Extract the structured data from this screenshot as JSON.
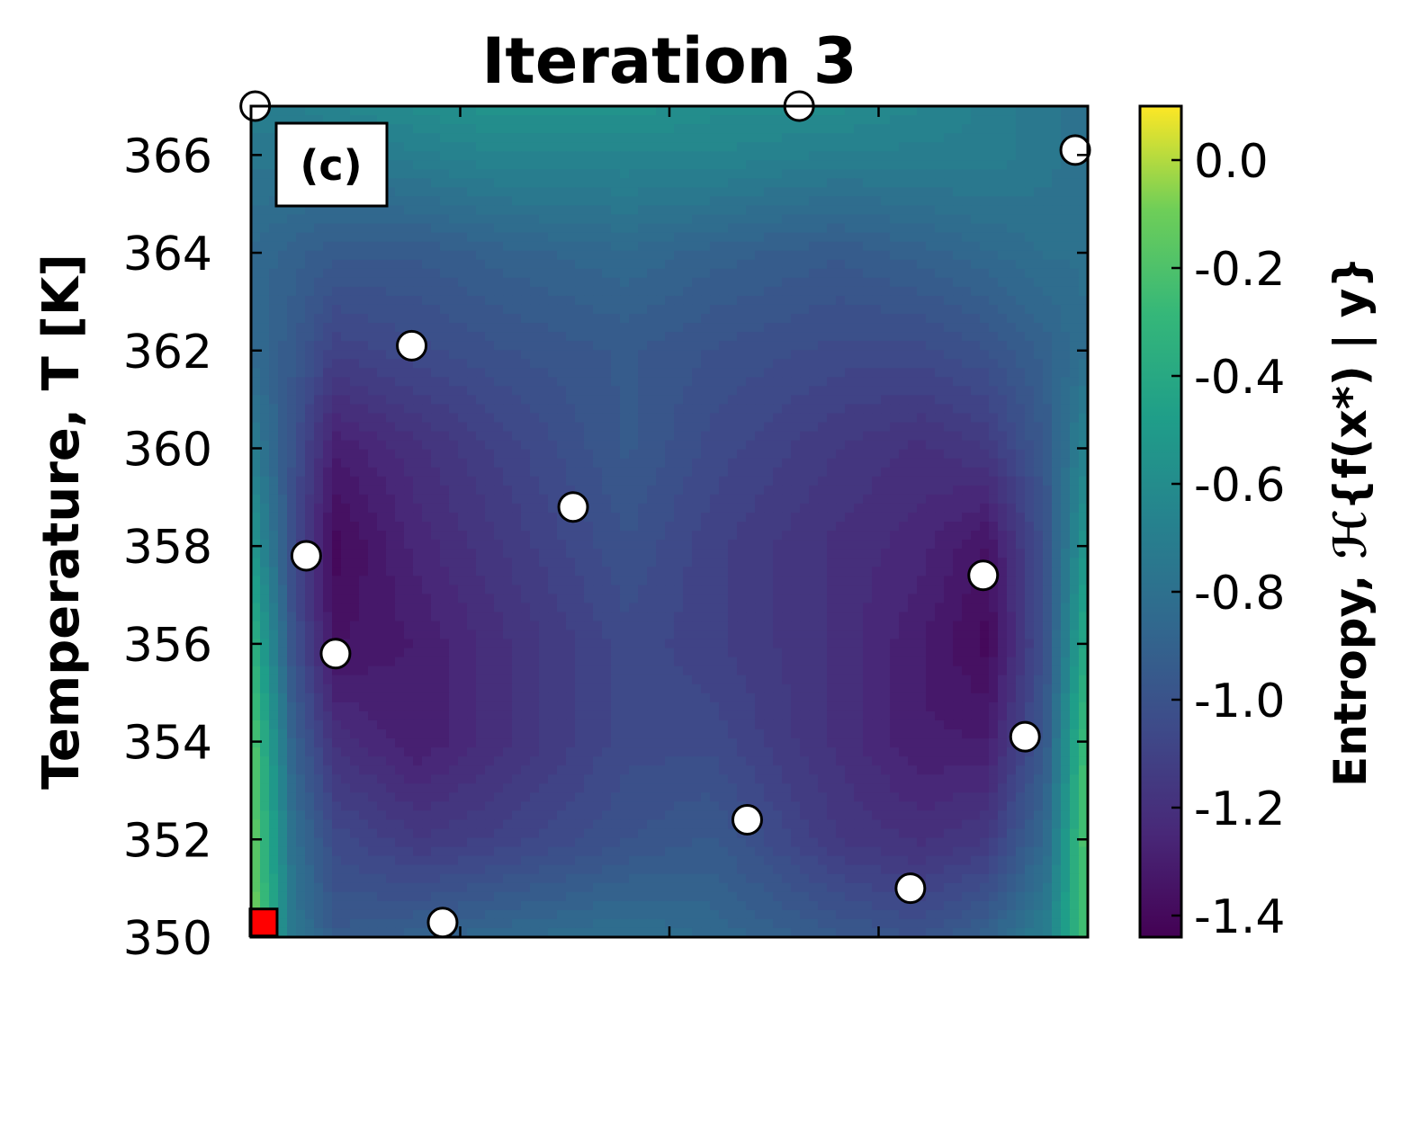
{
  "chart_data": {
    "type": "heatmap",
    "title": "Iteration 3",
    "panel_label": "(c)",
    "ylabel": "Temperature, T [K]",
    "xlabel": "",
    "ylim": [
      350,
      367
    ],
    "xlim": [
      0,
      1
    ],
    "y_ticks": [
      350,
      352,
      354,
      356,
      358,
      360,
      362,
      364,
      366
    ],
    "y_tick_labels": [
      "350",
      "352",
      "354",
      "356",
      "358",
      "360",
      "362",
      "364",
      "366"
    ],
    "x_ticks": [
      0.25,
      0.5,
      0.75
    ],
    "colorbar": {
      "label": "Entropy, ℋ{f(x*) | y}",
      "colormap": "viridis",
      "range": [
        -1.44,
        0.1
      ],
      "ticks": [
        0.0,
        -0.2,
        -0.4,
        -0.6,
        -0.8,
        -1.0,
        -1.2,
        -1.4
      ],
      "tick_labels": [
        "0.0",
        "-0.2",
        "-0.4",
        "-0.6",
        "-0.8",
        "-1.0",
        "-1.2",
        "-1.4"
      ]
    },
    "entropy_grid": {
      "x": [
        0.0,
        0.05,
        0.1,
        0.2,
        0.3,
        0.45,
        0.55,
        0.7,
        0.8,
        0.88,
        0.95,
        1.0
      ],
      "y": [
        350,
        352,
        354,
        356,
        358,
        360,
        362,
        364,
        366,
        367
      ],
      "z": [
        [
          -0.05,
          -0.75,
          -0.95,
          -0.9,
          -0.85,
          -0.8,
          -0.85,
          -0.95,
          -1.0,
          -0.9,
          -0.7,
          -0.2
        ],
        [
          -0.1,
          -0.8,
          -1.05,
          -1.15,
          -1.1,
          -1.0,
          -0.95,
          -1.15,
          -1.2,
          -1.15,
          -0.85,
          -0.15
        ],
        [
          -0.15,
          -0.9,
          -1.2,
          -1.3,
          -1.2,
          -1.05,
          -1.05,
          -1.2,
          -1.3,
          -1.3,
          -0.95,
          -0.2
        ],
        [
          -0.3,
          -1.0,
          -1.35,
          -1.3,
          -1.2,
          -1.05,
          -1.1,
          -1.2,
          -1.3,
          -1.4,
          -1.0,
          -0.35
        ],
        [
          -0.5,
          -1.05,
          -1.4,
          -1.25,
          -1.15,
          -1.0,
          -1.1,
          -1.2,
          -1.25,
          -1.35,
          -1.0,
          -0.5
        ],
        [
          -0.7,
          -1.0,
          -1.3,
          -1.2,
          -1.1,
          -0.95,
          -1.05,
          -1.15,
          -1.2,
          -1.15,
          -0.95,
          -0.65
        ],
        [
          -0.85,
          -0.95,
          -1.1,
          -1.05,
          -1.0,
          -0.95,
          -1.0,
          -1.05,
          -1.05,
          -1.0,
          -0.9,
          -0.8
        ],
        [
          -0.85,
          -0.9,
          -0.95,
          -0.95,
          -0.9,
          -0.85,
          -0.9,
          -0.95,
          -0.9,
          -0.85,
          -0.8,
          -0.8
        ],
        [
          -0.75,
          -0.75,
          -0.75,
          -0.7,
          -0.65,
          -0.65,
          -0.65,
          -0.7,
          -0.7,
          -0.7,
          -0.75,
          -0.8
        ],
        [
          -0.7,
          -0.7,
          -0.65,
          -0.6,
          -0.55,
          -0.55,
          -0.6,
          -0.6,
          -0.65,
          -0.7,
          -0.75,
          -0.8
        ]
      ]
    },
    "observed_points": [
      {
        "x": 0.005,
        "y": 367.0
      },
      {
        "x": 0.655,
        "y": 367.0
      },
      {
        "x": 0.985,
        "y": 366.1
      },
      {
        "x": 0.192,
        "y": 362.1
      },
      {
        "x": 0.385,
        "y": 358.8
      },
      {
        "x": 0.066,
        "y": 357.8
      },
      {
        "x": 0.101,
        "y": 355.8
      },
      {
        "x": 0.875,
        "y": 357.4
      },
      {
        "x": 0.925,
        "y": 354.1
      },
      {
        "x": 0.593,
        "y": 352.4
      },
      {
        "x": 0.788,
        "y": 351.0
      },
      {
        "x": 0.229,
        "y": 350.3
      }
    ],
    "selected_point": {
      "x": 0.015,
      "y": 350.3
    },
    "colors": {
      "marker_fill": "#ffffff",
      "marker_edge": "#000000",
      "selected_fill": "#ff0000"
    }
  }
}
